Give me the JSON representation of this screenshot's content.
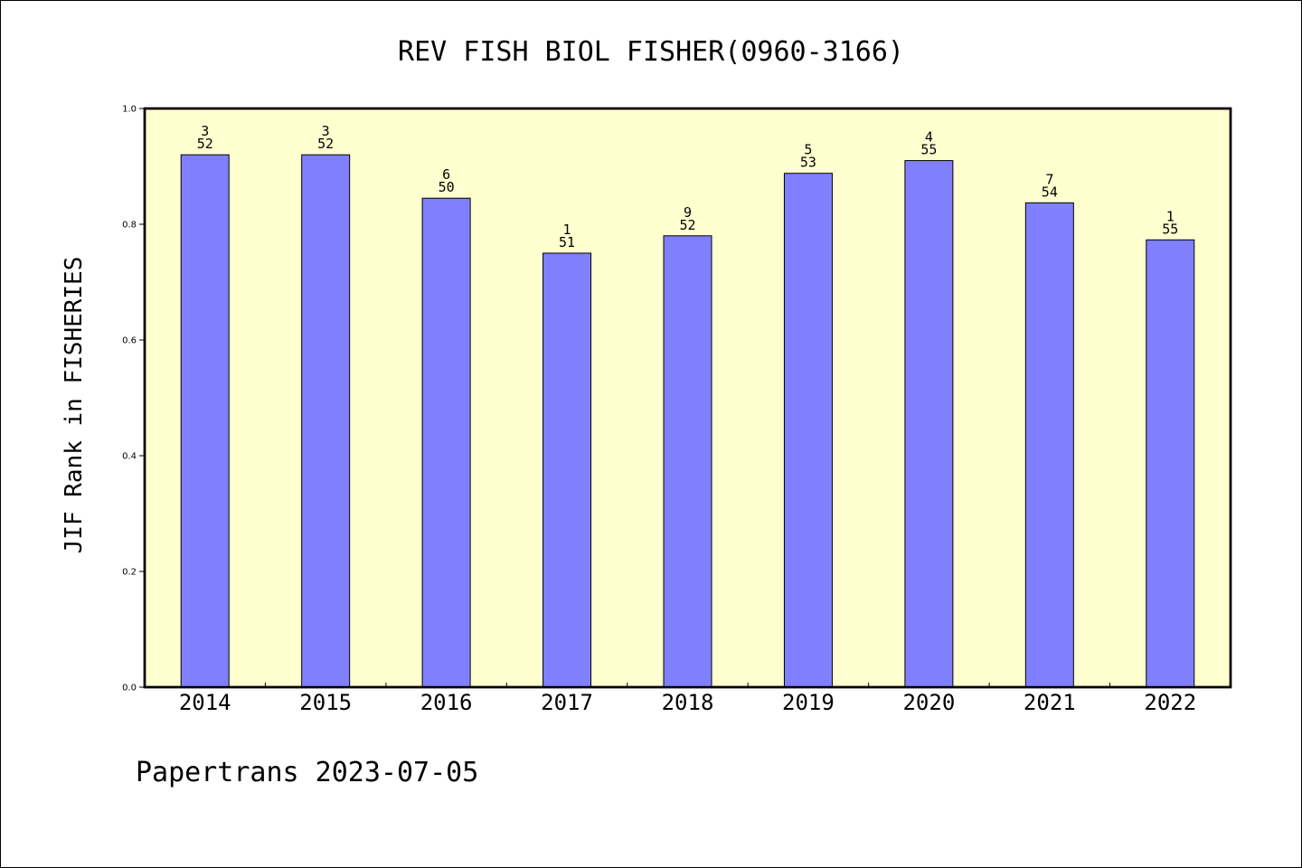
{
  "chart_data": {
    "type": "bar",
    "title": "REV FISH BIOL FISHER(0960-3166)",
    "ylabel": "JIF Rank in FISHERIES",
    "xlabel": "",
    "categories": [
      "2014",
      "2015",
      "2016",
      "2017",
      "2018",
      "2019",
      "2020",
      "2021",
      "2022"
    ],
    "values": [
      0.92,
      0.92,
      0.845,
      0.75,
      0.78,
      0.888,
      0.91,
      0.837,
      0.773
    ],
    "bar_labels": [
      {
        "top": "3",
        "bottom": "52"
      },
      {
        "top": "3",
        "bottom": "52"
      },
      {
        "top": "6",
        "bottom": "50"
      },
      {
        "top": "1",
        "bottom": "51"
      },
      {
        "top": "9",
        "bottom": "52"
      },
      {
        "top": "5",
        "bottom": "53"
      },
      {
        "top": "4",
        "bottom": "55"
      },
      {
        "top": "7",
        "bottom": "54"
      },
      {
        "top": "1",
        "bottom": "55"
      }
    ],
    "ylim": [
      0,
      1.0
    ],
    "yticks": [
      "0.0",
      "0.2",
      "0.4",
      "0.6",
      "0.8",
      "1.0"
    ],
    "grid": false,
    "colors": {
      "bar": "#8080ff",
      "plot_background": "#ffffd0"
    }
  },
  "footer": "Papertrans 2023-07-05"
}
